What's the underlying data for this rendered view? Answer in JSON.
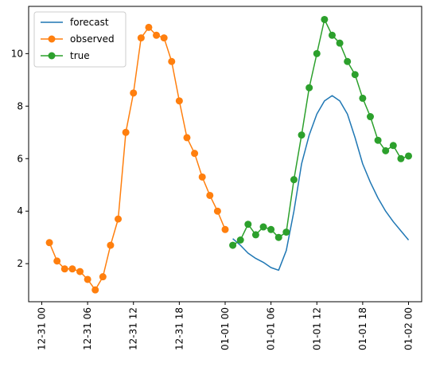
{
  "chart_data": {
    "type": "line",
    "title": "",
    "xlabel": "",
    "ylabel": "",
    "xlim": [
      "2023-12-30T22:17",
      "2024-01-02T01:43"
    ],
    "ylim": [
      0.55,
      11.8
    ],
    "grid": false,
    "legend": {
      "placement": "top-left",
      "entries": [
        "forecast",
        "observed",
        "true"
      ]
    },
    "x_ticks": [
      "12-31 00",
      "12-31 06",
      "12-31 12",
      "12-31 18",
      "01-01 00",
      "01-01 06",
      "01-01 12",
      "01-01 18",
      "01-02 00"
    ],
    "y_ticks": [
      "2",
      "4",
      "6",
      "8",
      "10"
    ],
    "series": [
      {
        "name": "forecast",
        "color": "#1f77b4",
        "marker": "none",
        "x": [
          "2024-01-01T01:00",
          "2024-01-01T02:00",
          "2024-01-01T03:00",
          "2024-01-01T04:00",
          "2024-01-01T05:00",
          "2024-01-01T06:00",
          "2024-01-01T07:00",
          "2024-01-01T08:00",
          "2024-01-01T09:00",
          "2024-01-01T10:00",
          "2024-01-01T11:00",
          "2024-01-01T12:00",
          "2024-01-01T13:00",
          "2024-01-01T14:00",
          "2024-01-01T15:00",
          "2024-01-01T16:00",
          "2024-01-01T17:00",
          "2024-01-01T18:00",
          "2024-01-01T19:00",
          "2024-01-01T20:00",
          "2024-01-01T21:00",
          "2024-01-01T22:00",
          "2024-01-01T23:00",
          "2024-01-02T00:00"
        ],
        "y": [
          2.95,
          2.7,
          2.4,
          2.2,
          2.05,
          1.85,
          1.75,
          2.5,
          4.0,
          5.8,
          6.9,
          7.7,
          8.2,
          8.4,
          8.2,
          7.7,
          6.8,
          5.8,
          5.1,
          4.5,
          4.0,
          3.6,
          3.25,
          2.9
        ]
      },
      {
        "name": "observed",
        "color": "#ff7f0e",
        "marker": "circle",
        "x": [
          "2023-12-31T01:00",
          "2023-12-31T02:00",
          "2023-12-31T03:00",
          "2023-12-31T04:00",
          "2023-12-31T05:00",
          "2023-12-31T06:00",
          "2023-12-31T07:00",
          "2023-12-31T08:00",
          "2023-12-31T09:00",
          "2023-12-31T10:00",
          "2023-12-31T11:00",
          "2023-12-31T12:00",
          "2023-12-31T13:00",
          "2023-12-31T14:00",
          "2023-12-31T15:00",
          "2023-12-31T16:00",
          "2023-12-31T17:00",
          "2023-12-31T18:00",
          "2023-12-31T19:00",
          "2023-12-31T20:00",
          "2023-12-31T21:00",
          "2023-12-31T22:00",
          "2023-12-31T23:00",
          "2024-01-01T00:00"
        ],
        "y": [
          2.8,
          2.1,
          1.8,
          1.8,
          1.7,
          1.4,
          1.0,
          1.5,
          2.7,
          3.7,
          7.0,
          8.5,
          10.6,
          11.0,
          10.7,
          10.6,
          9.7,
          8.2,
          6.8,
          6.2,
          5.3,
          4.6,
          4.0,
          3.3
        ]
      },
      {
        "name": "true",
        "color": "#2ca02c",
        "marker": "circle",
        "x": [
          "2024-01-01T01:00",
          "2024-01-01T02:00",
          "2024-01-01T03:00",
          "2024-01-01T04:00",
          "2024-01-01T05:00",
          "2024-01-01T06:00",
          "2024-01-01T07:00",
          "2024-01-01T08:00",
          "2024-01-01T09:00",
          "2024-01-01T10:00",
          "2024-01-01T11:00",
          "2024-01-01T12:00",
          "2024-01-01T13:00",
          "2024-01-01T14:00",
          "2024-01-01T15:00",
          "2024-01-01T16:00",
          "2024-01-01T17:00",
          "2024-01-01T18:00",
          "2024-01-01T19:00",
          "2024-01-01T20:00",
          "2024-01-01T21:00",
          "2024-01-01T22:00",
          "2024-01-01T23:00",
          "2024-01-02T00:00"
        ],
        "y": [
          2.7,
          2.9,
          3.5,
          3.1,
          3.4,
          3.3,
          3.0,
          3.2,
          5.2,
          6.9,
          8.7,
          10.0,
          11.3,
          10.7,
          10.4,
          9.7,
          9.2,
          8.3,
          7.6,
          6.7,
          6.3,
          6.5,
          6.0,
          6.1
        ]
      }
    ]
  }
}
